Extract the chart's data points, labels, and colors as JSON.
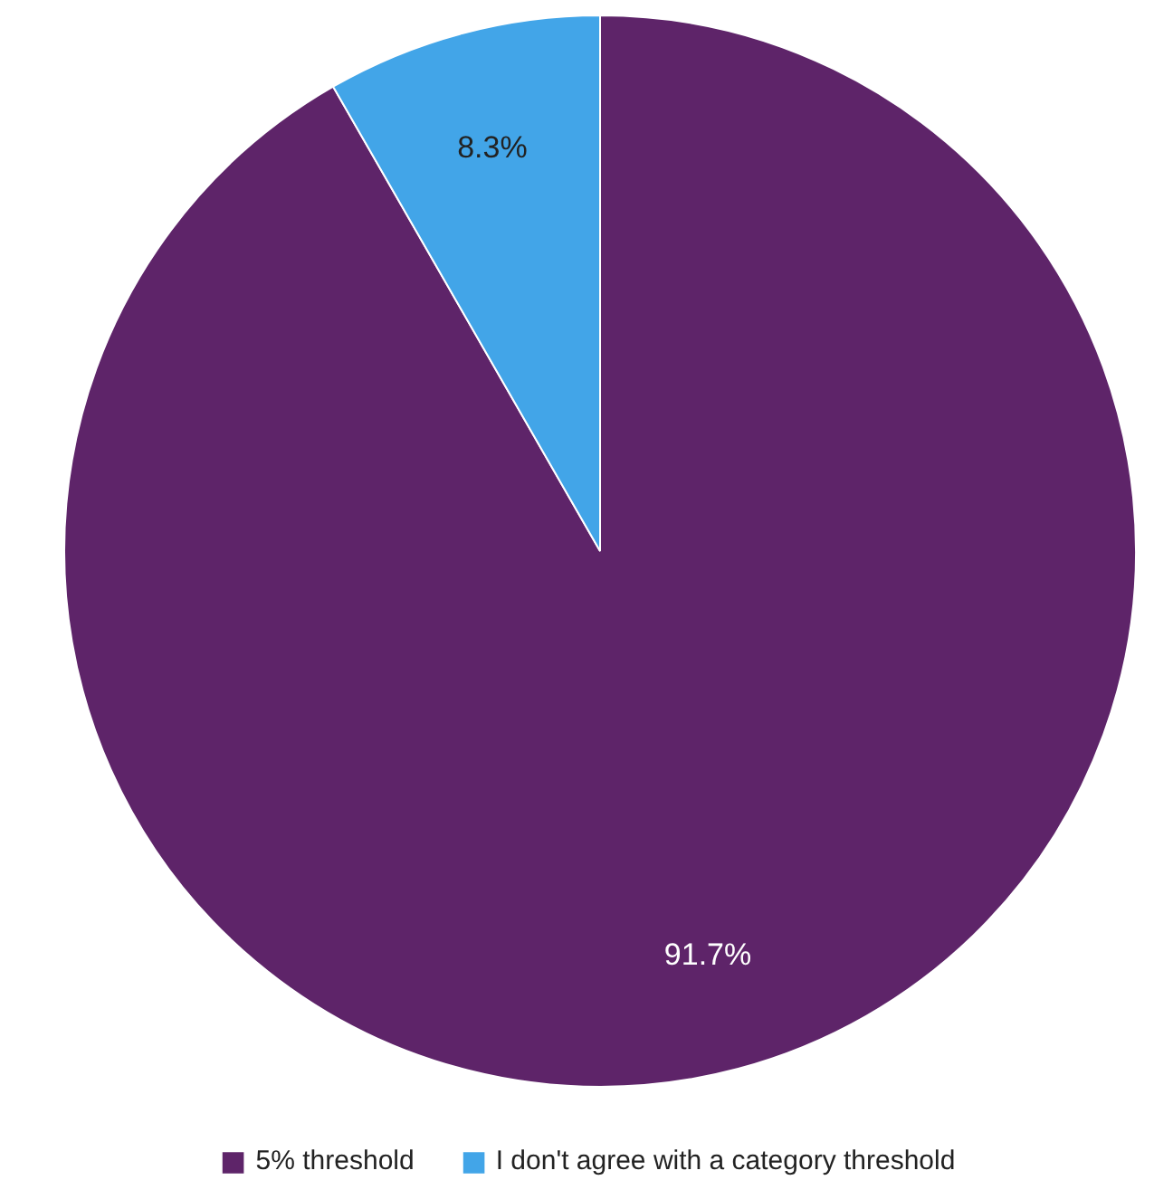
{
  "chart_data": {
    "type": "pie",
    "categories": [
      "5% threshold",
      "I don't agree with a category threshold"
    ],
    "values": [
      91.7,
      8.3
    ],
    "colors": [
      "#5e2469",
      "#42a5e8"
    ],
    "value_labels": [
      "91.7%",
      "8.3%"
    ],
    "legend": "bottom"
  }
}
